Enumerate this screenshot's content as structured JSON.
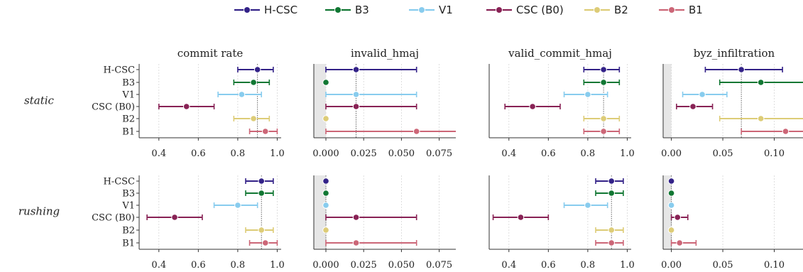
{
  "chart_data": {
    "type": "scatter",
    "legend": {
      "placement": "top-center",
      "entries": [
        {
          "label": "H-CSC",
          "color": "#332288"
        },
        {
          "label": "B3",
          "color": "#117733"
        },
        {
          "label": "V1",
          "color": "#88CCEE"
        },
        {
          "label": "CSC (B0)",
          "color": "#882255"
        },
        {
          "label": "B2",
          "color": "#DDCC77"
        },
        {
          "label": "B1",
          "color": "#CC6677"
        }
      ]
    },
    "categories": [
      "H-CSC",
      "B3",
      "V1",
      "CSC (B0)",
      "B2",
      "B1"
    ],
    "row_labels": [
      "static",
      "rushing"
    ],
    "panels": [
      {
        "title": "commit rate",
        "xlim": [
          0.3,
          1.02
        ],
        "xticks": [
          0.4,
          0.6,
          0.8,
          1.0
        ],
        "tick_labels": [
          "0.4",
          "0.6",
          "0.8",
          "1.0"
        ]
      },
      {
        "title": "invalid_hmaj",
        "xlim": [
          -0.008,
          0.086
        ],
        "xticks": [
          0.0,
          0.025,
          0.05,
          0.075
        ],
        "tick_labels": [
          "0.000",
          "0.025",
          "0.050",
          "0.075"
        ]
      },
      {
        "title": "valid_commit_hmaj",
        "xlim": [
          0.3,
          1.02
        ],
        "xticks": [
          0.4,
          0.6,
          0.8,
          1.0
        ],
        "tick_labels": [
          "0.4",
          "0.6",
          "0.8",
          "1.0"
        ]
      },
      {
        "title": "byz_infiltration",
        "xlim": [
          -0.008,
          0.13
        ],
        "xticks": [
          0.0,
          0.05,
          0.1
        ],
        "tick_labels": [
          "0.00",
          "0.05",
          "0.10"
        ]
      }
    ],
    "reference_lines": [
      [
        0.9,
        0.02,
        0.88,
        0.068
      ],
      [
        0.92,
        0.0,
        0.92,
        0.0
      ]
    ],
    "data": [
      [
        {
          "mean": [
            0.9,
            0.88,
            0.82,
            0.54,
            0.88,
            0.94
          ],
          "low": [
            0.8,
            0.78,
            0.7,
            0.4,
            0.78,
            0.86
          ],
          "high": [
            0.98,
            0.96,
            0.92,
            0.68,
            0.96,
            1.0
          ]
        },
        {
          "mean": [
            0.02,
            0.0,
            0.02,
            0.02,
            0.0,
            0.06
          ],
          "low": [
            0.0,
            0.0,
            0.0,
            0.0,
            0.0,
            0.0
          ],
          "high": [
            0.06,
            0.0,
            0.06,
            0.06,
            0.0,
            0.13
          ]
        },
        {
          "mean": [
            0.88,
            0.88,
            0.8,
            0.52,
            0.88,
            0.88
          ],
          "low": [
            0.78,
            0.78,
            0.68,
            0.38,
            0.78,
            0.78
          ],
          "high": [
            0.96,
            0.96,
            0.9,
            0.66,
            0.96,
            0.96
          ]
        },
        {
          "mean": [
            0.068,
            0.087,
            0.03,
            0.021,
            0.087,
            0.111
          ],
          "low": [
            0.033,
            0.047,
            0.011,
            0.005,
            0.047,
            0.068
          ],
          "high": [
            0.108,
            0.16,
            0.054,
            0.04,
            0.16,
            0.16
          ]
        }
      ],
      [
        {
          "mean": [
            0.92,
            0.92,
            0.8,
            0.48,
            0.92,
            0.94
          ],
          "low": [
            0.84,
            0.84,
            0.68,
            0.34,
            0.84,
            0.86
          ],
          "high": [
            0.98,
            0.98,
            0.9,
            0.62,
            0.98,
            1.0
          ]
        },
        {
          "mean": [
            0.0,
            0.0,
            0.0,
            0.02,
            0.0,
            0.02
          ],
          "low": [
            0.0,
            0.0,
            0.0,
            0.0,
            0.0,
            0.0
          ],
          "high": [
            0.0,
            0.0,
            0.0,
            0.06,
            0.0,
            0.06
          ]
        },
        {
          "mean": [
            0.92,
            0.92,
            0.8,
            0.46,
            0.92,
            0.92
          ],
          "low": [
            0.84,
            0.84,
            0.68,
            0.32,
            0.84,
            0.84
          ],
          "high": [
            0.98,
            0.98,
            0.9,
            0.6,
            0.98,
            0.98
          ]
        },
        {
          "mean": [
            0.0,
            0.0,
            0.0,
            0.006,
            0.0,
            0.008
          ],
          "low": [
            0.0,
            0.0,
            0.0,
            0.0,
            0.0,
            0.0
          ],
          "high": [
            0.0,
            0.0,
            0.0,
            0.016,
            0.0,
            0.024
          ]
        }
      ]
    ]
  }
}
